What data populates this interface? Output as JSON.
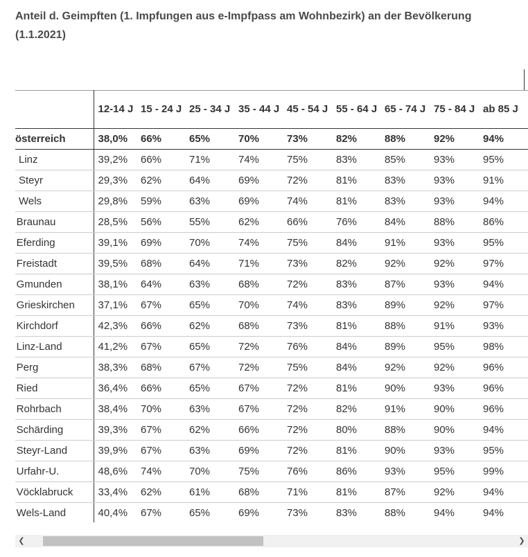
{
  "title": "Anteil d. Geimpften (1. Impfungen aus e-Impfpass am Wohnbezirk) an der Bevölkerung (1.1.2021)",
  "table": {
    "corner": "",
    "columns": [
      "12-14 J",
      "15 - 24 J",
      "25 - 34 J",
      "35 - 44 J",
      "45 - 54 J",
      "55 - 64 J",
      "65 - 74 J",
      "75 - 84 J",
      "ab 85 J"
    ],
    "total_row": {
      "label": "österreich",
      "values": [
        "38,0%",
        "66%",
        "65%",
        "70%",
        "73%",
        "82%",
        "88%",
        "92%",
        "94%"
      ]
    },
    "rows": [
      {
        "label": "Linz",
        "values": [
          "39,2%",
          "66%",
          "71%",
          "74%",
          "75%",
          "83%",
          "85%",
          "93%",
          "95%"
        ]
      },
      {
        "label": "Steyr",
        "values": [
          "29,3%",
          "62%",
          "64%",
          "69%",
          "72%",
          "81%",
          "83%",
          "93%",
          "91%"
        ]
      },
      {
        "label": "Wels",
        "values": [
          "29,8%",
          "59%",
          "63%",
          "69%",
          "74%",
          "81%",
          "83%",
          "93%",
          "94%"
        ]
      },
      {
        "label": "k Braunau",
        "values": [
          "28,5%",
          "56%",
          "55%",
          "62%",
          "66%",
          "76%",
          "84%",
          "88%",
          "86%"
        ]
      },
      {
        "label": "k Eferding",
        "values": [
          "39,1%",
          "69%",
          "70%",
          "74%",
          "75%",
          "84%",
          "91%",
          "93%",
          "95%"
        ]
      },
      {
        "label": "k Freistadt",
        "values": [
          "39,5%",
          "68%",
          "64%",
          "71%",
          "73%",
          "82%",
          "92%",
          "92%",
          "97%"
        ]
      },
      {
        "label": "k Gmunden",
        "values": [
          "38,1%",
          "64%",
          "63%",
          "68%",
          "72%",
          "83%",
          "87%",
          "93%",
          "94%"
        ]
      },
      {
        "label": "k Grieskirchen",
        "values": [
          "37,1%",
          "67%",
          "65%",
          "70%",
          "74%",
          "83%",
          "89%",
          "92%",
          "97%"
        ]
      },
      {
        "label": "k Kirchdorf",
        "values": [
          "42,3%",
          "66%",
          "62%",
          "68%",
          "73%",
          "81%",
          "88%",
          "91%",
          "93%"
        ]
      },
      {
        "label": "k Linz-Land",
        "values": [
          "41,2%",
          "67%",
          "65%",
          "72%",
          "76%",
          "84%",
          "89%",
          "95%",
          "98%"
        ]
      },
      {
        "label": "k Perg",
        "values": [
          "38,3%",
          "68%",
          "67%",
          "72%",
          "75%",
          "84%",
          "92%",
          "92%",
          "96%"
        ]
      },
      {
        "label": "k Ried",
        "values": [
          "36,4%",
          "66%",
          "65%",
          "67%",
          "72%",
          "81%",
          "90%",
          "93%",
          "96%"
        ]
      },
      {
        "label": "k Rohrbach",
        "values": [
          "38,4%",
          "70%",
          "63%",
          "67%",
          "72%",
          "82%",
          "91%",
          "90%",
          "96%"
        ]
      },
      {
        "label": "k Schärding",
        "values": [
          "39,3%",
          "67%",
          "62%",
          "66%",
          "72%",
          "80%",
          "88%",
          "90%",
          "94%"
        ]
      },
      {
        "label": "k Steyr-Land",
        "values": [
          "39,9%",
          "67%",
          "63%",
          "69%",
          "72%",
          "81%",
          "90%",
          "93%",
          "95%"
        ]
      },
      {
        "label": "k Urfahr-U.",
        "values": [
          "48,6%",
          "74%",
          "70%",
          "75%",
          "76%",
          "86%",
          "93%",
          "95%",
          "99%"
        ]
      },
      {
        "label": "k Vöcklabruck",
        "values": [
          "33,4%",
          "62%",
          "61%",
          "68%",
          "71%",
          "81%",
          "87%",
          "92%",
          "94%"
        ]
      },
      {
        "label": "k Wels-Land",
        "values": [
          "40,4%",
          "67%",
          "65%",
          "69%",
          "73%",
          "83%",
          "88%",
          "94%",
          "94%"
        ]
      }
    ]
  },
  "scrollbar": {
    "left_arrow_icon": "chevron-left-icon",
    "right_arrow_icon": "chevron-right-icon",
    "left_glyph": "❮",
    "right_glyph": "❯",
    "scroll_position": 0.06
  }
}
